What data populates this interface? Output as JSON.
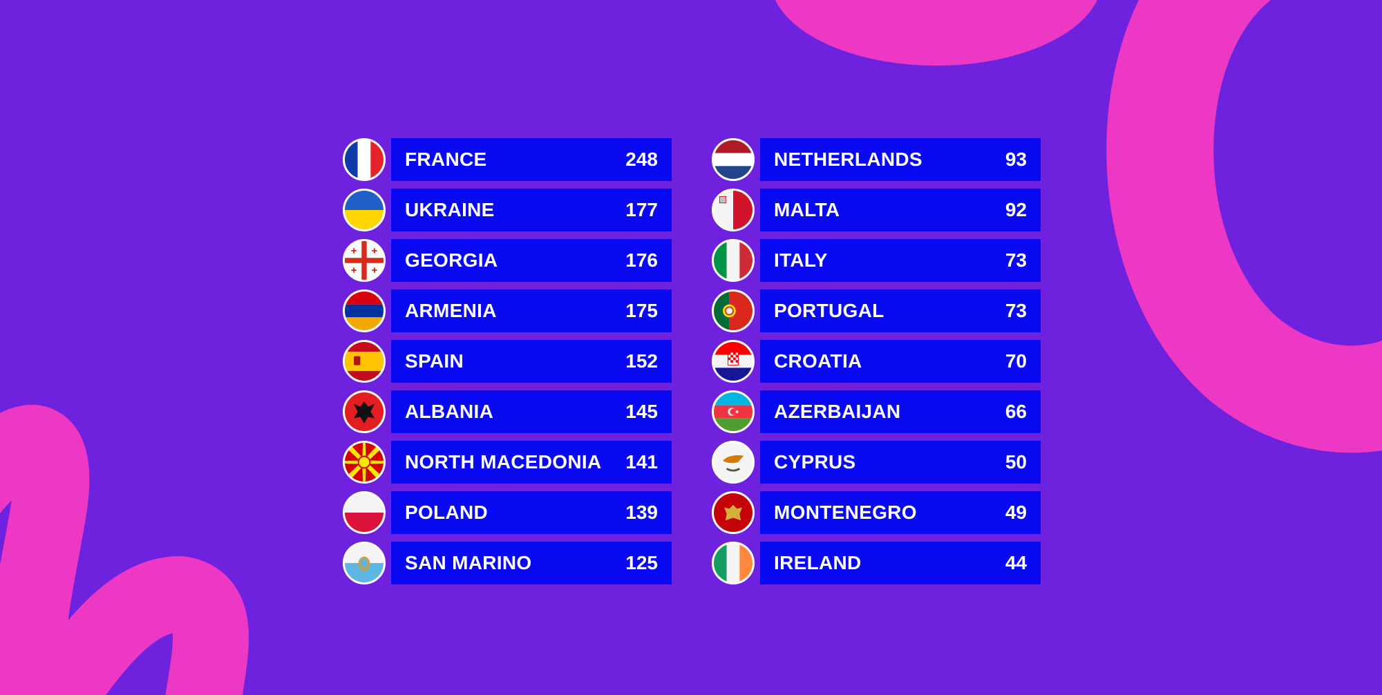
{
  "colors": {
    "background": "#6e22dd",
    "bar": "#0a0af2",
    "accent": "#ec38c4",
    "text": "#ffffff"
  },
  "left": [
    {
      "country": "FRANCE",
      "points": "248",
      "flag": "france-flag-icon"
    },
    {
      "country": "UKRAINE",
      "points": "177",
      "flag": "ukraine-flag-icon"
    },
    {
      "country": "GEORGIA",
      "points": "176",
      "flag": "georgia-flag-icon"
    },
    {
      "country": "ARMENIA",
      "points": "175",
      "flag": "armenia-flag-icon"
    },
    {
      "country": "SPAIN",
      "points": "152",
      "flag": "spain-flag-icon"
    },
    {
      "country": "ALBANIA",
      "points": "145",
      "flag": "albania-flag-icon"
    },
    {
      "country": "NORTH MACEDONIA",
      "points": "141",
      "flag": "north-macedonia-flag-icon"
    },
    {
      "country": "POLAND",
      "points": "139",
      "flag": "poland-flag-icon"
    },
    {
      "country": "SAN MARINO",
      "points": "125",
      "flag": "san-marino-flag-icon"
    }
  ],
  "right": [
    {
      "country": "NETHERLANDS",
      "points": "93",
      "flag": "netherlands-flag-icon"
    },
    {
      "country": "MALTA",
      "points": "92",
      "flag": "malta-flag-icon"
    },
    {
      "country": "ITALY",
      "points": "73",
      "flag": "italy-flag-icon"
    },
    {
      "country": "PORTUGAL",
      "points": "73",
      "flag": "portugal-flag-icon"
    },
    {
      "country": "CROATIA",
      "points": "70",
      "flag": "croatia-flag-icon"
    },
    {
      "country": "AZERBAIJAN",
      "points": "66",
      "flag": "azerbaijan-flag-icon"
    },
    {
      "country": "CYPRUS",
      "points": "50",
      "flag": "cyprus-flag-icon"
    },
    {
      "country": "MONTENEGRO",
      "points": "49",
      "flag": "montenegro-flag-icon"
    },
    {
      "country": "IRELAND",
      "points": "44",
      "flag": "ireland-flag-icon"
    }
  ]
}
